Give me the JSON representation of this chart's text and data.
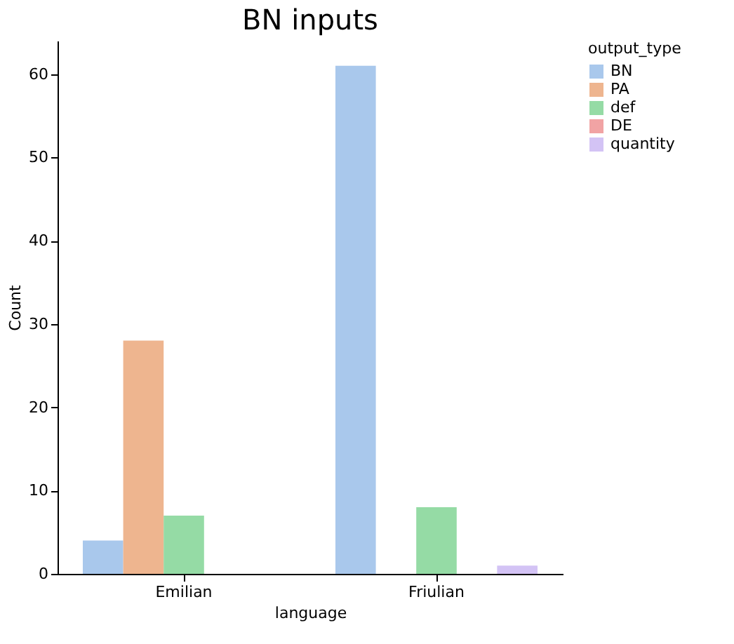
{
  "chart_data": {
    "type": "bar",
    "title": "BN inputs",
    "xlabel": "language",
    "ylabel": "Count",
    "legend_title": "output_type",
    "categories": [
      "Emilian",
      "Friulian"
    ],
    "series": [
      {
        "name": "BN",
        "color": "#a9c8ec",
        "values": [
          4,
          61
        ]
      },
      {
        "name": "PA",
        "color": "#eeb58f",
        "values": [
          28,
          0
        ]
      },
      {
        "name": "def",
        "color": "#95dba5",
        "values": [
          7,
          8
        ]
      },
      {
        "name": "DE",
        "color": "#f1a3a4",
        "values": [
          0,
          0
        ]
      },
      {
        "name": "quantity",
        "color": "#d3c3f5",
        "values": [
          0,
          1
        ]
      }
    ],
    "ylim": [
      0,
      64
    ],
    "yticks": [
      0,
      10,
      20,
      30,
      40,
      50,
      60
    ],
    "grid": false,
    "legend": "right"
  }
}
